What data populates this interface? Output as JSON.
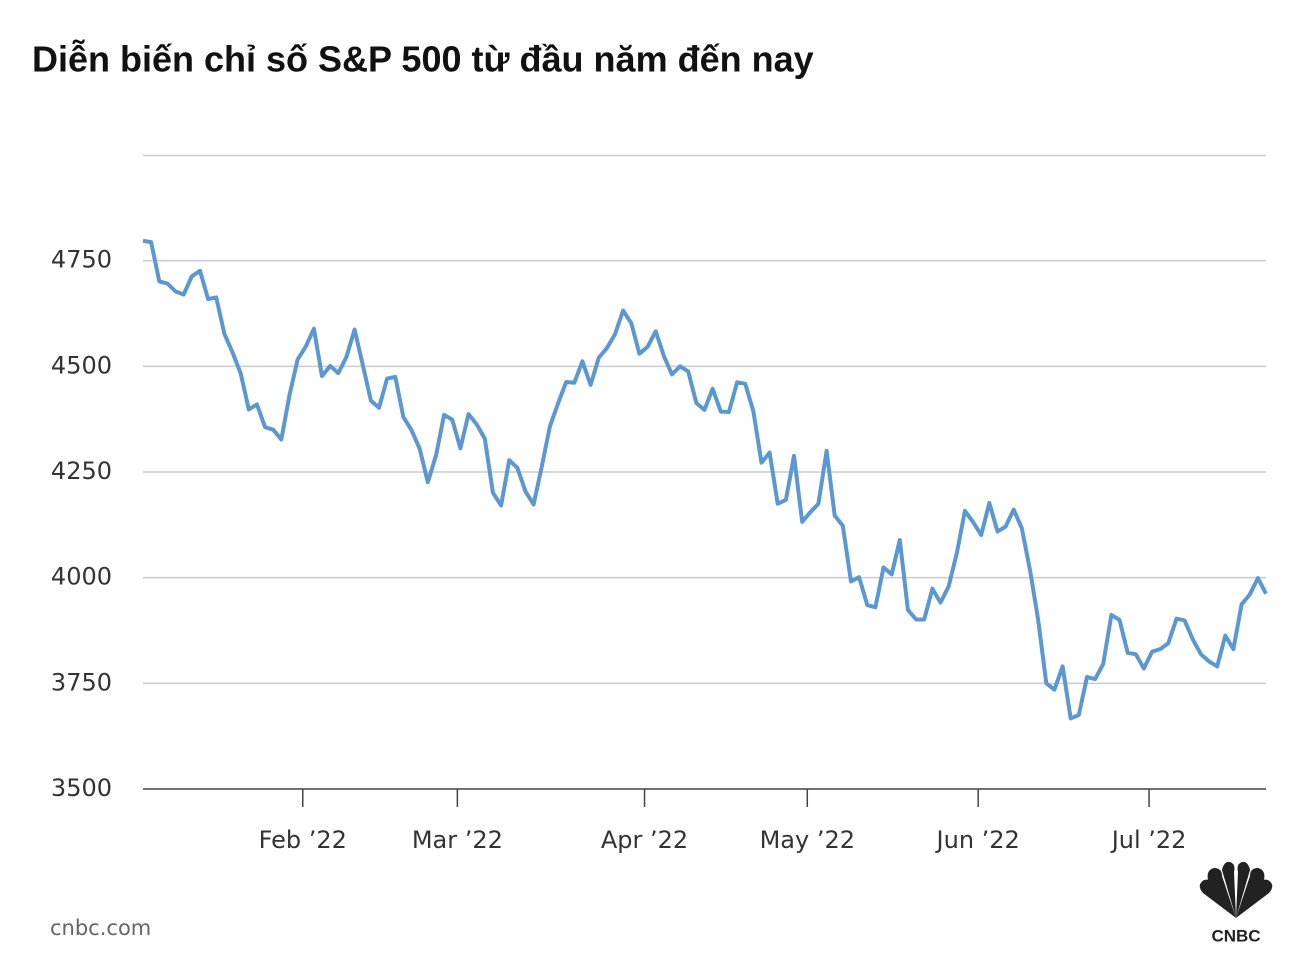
{
  "chart_data": {
    "type": "line",
    "title": "Diễn biến chỉ số S&P 500 từ đầu năm đến nay",
    "source": "cnbc.com",
    "logo": "CNBC",
    "categories": [
      null,
      null,
      null,
      null,
      null,
      null,
      null,
      null,
      null,
      null,
      null,
      null,
      null,
      null,
      null,
      null,
      null,
      null,
      null,
      null,
      "Feb ’22",
      null,
      null,
      null,
      null,
      null,
      null,
      null,
      null,
      null,
      null,
      null,
      null,
      null,
      null,
      null,
      null,
      null,
      null,
      "Mar ’22",
      null,
      null,
      null,
      null,
      null,
      null,
      null,
      null,
      null,
      null,
      null,
      null,
      null,
      null,
      null,
      null,
      null,
      null,
      null,
      null,
      null,
      null,
      "Apr ’22",
      null,
      null,
      null,
      null,
      null,
      null,
      null,
      null,
      null,
      null,
      null,
      null,
      null,
      null,
      null,
      null,
      null,
      null,
      null,
      "May ’22",
      null,
      null,
      null,
      null,
      null,
      null,
      null,
      null,
      null,
      null,
      null,
      null,
      null,
      null,
      null,
      null,
      null,
      null,
      null,
      null,
      "Jun ’22",
      null,
      null,
      null,
      null,
      null,
      null,
      null,
      null,
      null,
      null,
      null,
      null,
      null,
      null,
      null,
      null,
      null,
      null,
      null,
      null,
      "Jul ’22",
      null,
      null,
      null,
      null,
      null,
      null,
      null,
      null,
      null,
      null,
      null,
      null,
      null,
      null
    ],
    "values": [
      4797,
      4794,
      4701,
      4696,
      4677,
      4670,
      4713,
      4726,
      4659,
      4663,
      4577,
      4533,
      4483,
      4398,
      4410,
      4356,
      4350,
      4327,
      4432,
      4516,
      4547,
      4589,
      4477,
      4501,
      4484,
      4522,
      4587,
      4504,
      4419,
      4402,
      4471,
      4475,
      4380,
      4349,
      4305,
      4226,
      4289,
      4385,
      4374,
      4306,
      4387,
      4363,
      4329,
      4201,
      4171,
      4278,
      4260,
      4204,
      4173,
      4262,
      4358,
      4412,
      4463,
      4461,
      4512,
      4456,
      4520,
      4543,
      4576,
      4632,
      4602,
      4530,
      4546,
      4583,
      4525,
      4481,
      4500,
      4488,
      4413,
      4397,
      4447,
      4393,
      4392,
      4462,
      4459,
      4394,
      4272,
      4296,
      4175,
      4184,
      4288,
      4132,
      4155,
      4175,
      4300,
      4147,
      4123,
      3991,
      4001,
      3935,
      3930,
      4024,
      4008,
      4089,
      3924,
      3901,
      3901,
      3974,
      3941,
      3979,
      4058,
      4158,
      4132,
      4101,
      4177,
      4109,
      4121,
      4161,
      4116,
      4018,
      3901,
      3750,
      3735,
      3790,
      3667,
      3675,
      3765,
      3760,
      3796,
      3912,
      3900,
      3822,
      3819,
      3785,
      3825,
      3831,
      3845,
      3903,
      3899,
      3854,
      3819,
      3802,
      3790,
      3863,
      3831,
      3937,
      3960,
      3999,
      3962
    ],
    "color": "#5b97d1",
    "ylim": [
      3500,
      5000
    ],
    "yticks": [
      3500,
      3750,
      4000,
      4250,
      4500,
      4750
    ],
    "grid": true
  }
}
